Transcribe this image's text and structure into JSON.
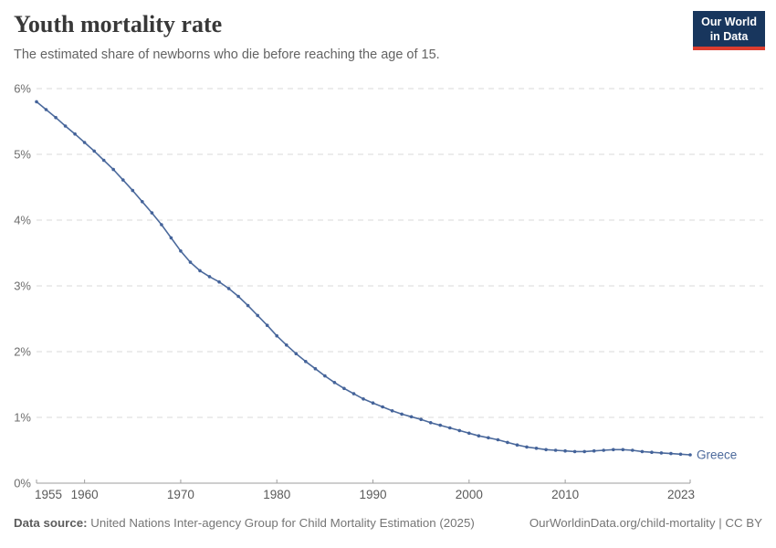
{
  "header": {
    "title": "Youth mortality rate",
    "subtitle": "The estimated share of newborns who die before reaching the age of 15."
  },
  "logo": {
    "line1": "Our World",
    "line2": "in Data",
    "bg_color": "#18365d",
    "accent_color": "#dc3d2f"
  },
  "chart_data": {
    "type": "line",
    "title": "Youth mortality rate",
    "entity": "Greece",
    "series_label": "Greece",
    "unit": "%",
    "xlabel": "",
    "ylabel": "",
    "ylim": [
      0,
      6
    ],
    "xlim": [
      1955,
      2023
    ],
    "grid": true,
    "legend_position": "end-of-line",
    "yticks": [
      {
        "value": 0,
        "label": "0%"
      },
      {
        "value": 1,
        "label": "1%"
      },
      {
        "value": 2,
        "label": "2%"
      },
      {
        "value": 3,
        "label": "3%"
      },
      {
        "value": 4,
        "label": "4%"
      },
      {
        "value": 5,
        "label": "5%"
      },
      {
        "value": 6,
        "label": "6%"
      }
    ],
    "xticks": [
      {
        "year": 1955,
        "label": "1955",
        "align": "start"
      },
      {
        "year": 1960,
        "label": "1960",
        "align": "middle"
      },
      {
        "year": 1970,
        "label": "1970",
        "align": "middle"
      },
      {
        "year": 1980,
        "label": "1980",
        "align": "middle"
      },
      {
        "year": 1990,
        "label": "1990",
        "align": "middle"
      },
      {
        "year": 2000,
        "label": "2000",
        "align": "middle"
      },
      {
        "year": 2010,
        "label": "2010",
        "align": "middle"
      },
      {
        "year": 2023,
        "label": "2023",
        "align": "end"
      }
    ],
    "years": [
      1955,
      1956,
      1957,
      1958,
      1959,
      1960,
      1961,
      1962,
      1963,
      1964,
      1965,
      1966,
      1967,
      1968,
      1969,
      1970,
      1971,
      1972,
      1973,
      1974,
      1975,
      1976,
      1977,
      1978,
      1979,
      1980,
      1981,
      1982,
      1983,
      1984,
      1985,
      1986,
      1987,
      1988,
      1989,
      1990,
      1991,
      1992,
      1993,
      1994,
      1995,
      1996,
      1997,
      1998,
      1999,
      2000,
      2001,
      2002,
      2003,
      2004,
      2005,
      2006,
      2007,
      2008,
      2009,
      2010,
      2011,
      2012,
      2013,
      2014,
      2015,
      2016,
      2017,
      2018,
      2019,
      2020,
      2021,
      2022,
      2023
    ],
    "values": [
      5.8,
      5.68,
      5.56,
      5.43,
      5.31,
      5.18,
      5.05,
      4.91,
      4.77,
      4.61,
      4.45,
      4.28,
      4.11,
      3.93,
      3.73,
      3.53,
      3.36,
      3.23,
      3.14,
      3.06,
      2.96,
      2.84,
      2.7,
      2.55,
      2.4,
      2.24,
      2.1,
      1.97,
      1.85,
      1.74,
      1.63,
      1.53,
      1.44,
      1.36,
      1.28,
      1.22,
      1.16,
      1.1,
      1.05,
      1.01,
      0.97,
      0.92,
      0.88,
      0.84,
      0.8,
      0.76,
      0.72,
      0.69,
      0.66,
      0.62,
      0.58,
      0.55,
      0.53,
      0.51,
      0.5,
      0.49,
      0.48,
      0.48,
      0.49,
      0.5,
      0.51,
      0.51,
      0.5,
      0.48,
      0.47,
      0.46,
      0.45,
      0.44,
      0.43
    ],
    "colors": {
      "line": "#4c6a9c",
      "point": "#44639a",
      "grid": "#d9d9d9",
      "axis": "#9e9e9e",
      "axis_text": "#6e6e6e",
      "xaxis_text": "#5a5a5a"
    }
  },
  "footer": {
    "datasource_label": "Data source:",
    "datasource": "United Nations Inter-agency Group for Child Mortality Estimation (2025)",
    "attribution": "OurWorldinData.org/child-mortality | CC BY"
  }
}
